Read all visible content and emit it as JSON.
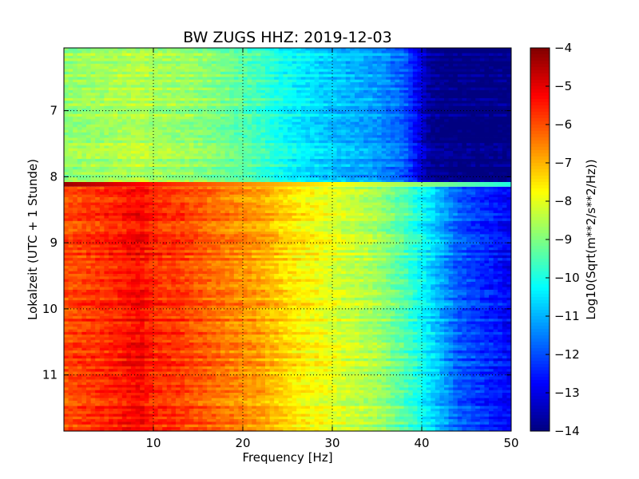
{
  "chart_data": {
    "type": "heatmap",
    "title": "BW ZUGS HHZ: 2019-12-03",
    "xlabel": "Frequency [Hz]",
    "ylabel": "Lokalzeit (UTC + 1 Stunde)",
    "colorbar_label": "Log10(Sqrt(m**2/s**2/Hz))",
    "xlim": [
      0,
      50
    ],
    "ylim": [
      11.85,
      6.05
    ],
    "y_inverted": true,
    "x_ticks": [
      10,
      20,
      30,
      40,
      50
    ],
    "x_tick_labels": [
      "10",
      "20",
      "30",
      "40",
      "50"
    ],
    "y_ticks": [
      7,
      8,
      9,
      10,
      11
    ],
    "y_tick_labels": [
      "7",
      "8",
      "9",
      "10",
      "11"
    ],
    "color_range": [
      -14,
      -4
    ],
    "colorbar_ticks": [
      -4,
      -5,
      -6,
      -7,
      -8,
      -9,
      -10,
      -11,
      -12,
      -13,
      -14
    ],
    "colorbar_tick_labels": [
      "−4",
      "−5",
      "−6",
      "−7",
      "−8",
      "−9",
      "−10",
      "−11",
      "−12",
      "−13",
      "−14"
    ],
    "colormap": "jet",
    "grid": true,
    "frequency_bins": [
      0,
      5,
      8.5,
      10,
      13,
      17,
      22,
      25,
      30,
      35,
      38,
      41,
      44,
      50
    ],
    "segments": [
      {
        "time_range": [
          6.05,
          8.08
        ],
        "psd_db": [
          -8.8,
          -8.6,
          -8.4,
          -8.6,
          -8.7,
          -9.0,
          -9.6,
          -10.2,
          -10.8,
          -11.2,
          -11.8,
          -13.8,
          -14.0,
          -14.0
        ]
      },
      {
        "time_range": [
          8.15,
          11.85
        ],
        "psd_db": [
          -6.0,
          -5.6,
          -5.2,
          -5.6,
          -5.8,
          -6.3,
          -6.8,
          -7.4,
          -8.0,
          -8.6,
          -9.4,
          -10.5,
          -11.8,
          -12.8
        ]
      }
    ],
    "transition_band": {
      "time_range": [
        8.08,
        8.15
      ],
      "low_freq_value": -4.3,
      "high_freq_value": -10.0
    }
  }
}
